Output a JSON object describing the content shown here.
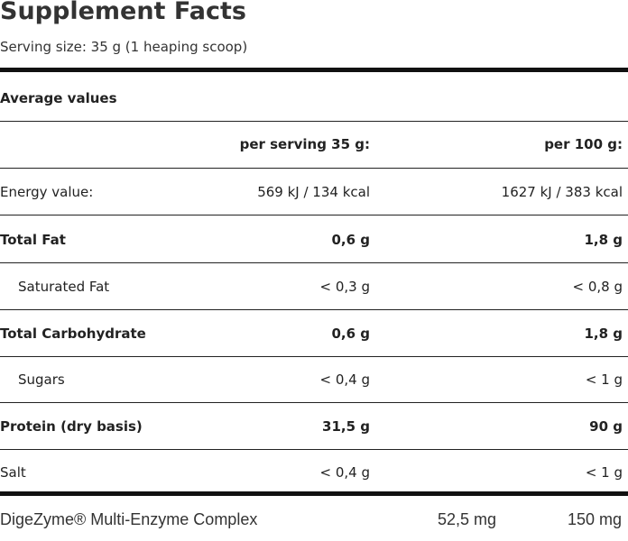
{
  "title": "Supplement Facts",
  "serving": "Serving size: 35 g (1 heaping scoop)",
  "section": "Average values",
  "columns": {
    "per_serving": "per serving 35 g:",
    "per_100": "per 100 g:"
  },
  "rows": [
    {
      "label": "Energy value:",
      "per_serving": "569 kJ / 134 kcal",
      "per_100": "1627 kJ / 383 kcal",
      "bold": false,
      "indent": false
    },
    {
      "label": "Total Fat",
      "per_serving": "0,6 g",
      "per_100": "1,8 g",
      "bold": true,
      "indent": false
    },
    {
      "label": "Saturated Fat",
      "per_serving": "< 0,3 g",
      "per_100": "< 0,8 g",
      "bold": false,
      "indent": true
    },
    {
      "label": "Total Carbohydrate",
      "per_serving": "0,6 g",
      "per_100": "1,8 g",
      "bold": true,
      "indent": false
    },
    {
      "label": "Sugars",
      "per_serving": "< 0,4 g",
      "per_100": "< 1 g",
      "bold": false,
      "indent": true
    },
    {
      "label": "Protein (dry basis)",
      "per_serving": "31,5 g",
      "per_100": "90 g",
      "bold": true,
      "indent": false
    },
    {
      "label": "Salt",
      "per_serving": "< 0,4 g",
      "per_100": "< 1 g",
      "bold": false,
      "indent": false
    }
  ],
  "footer": {
    "label": "DigeZyme® Multi-Enzyme Complex",
    "per_serving": "52,5 mg",
    "per_100": "150 mg"
  }
}
